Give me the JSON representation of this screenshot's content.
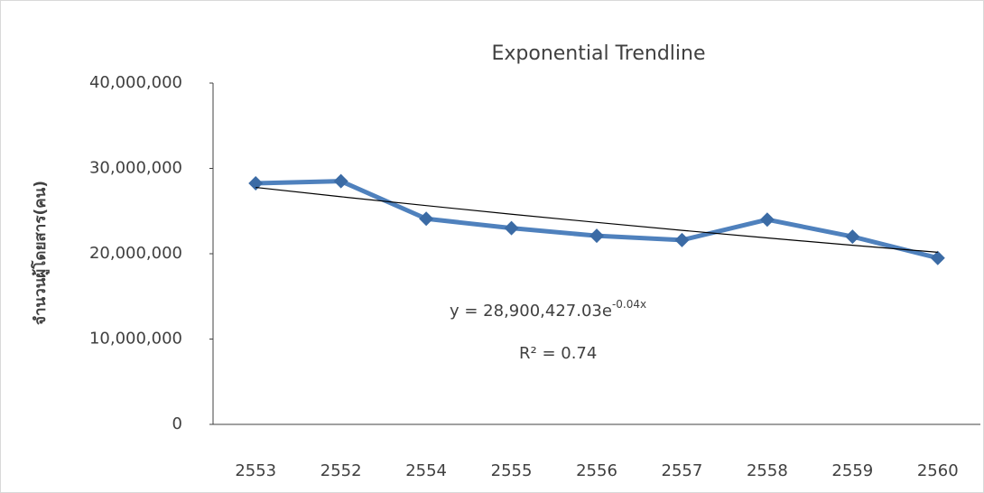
{
  "chart_data": {
    "type": "line",
    "title": "Exponential Trendline",
    "y_label": "จำนวนผู้โดยสาร(คน)",
    "categories": [
      "2553",
      "2552",
      "2554",
      "2555",
      "2556",
      "2557",
      "2558",
      "2559",
      "2560"
    ],
    "series": [
      {
        "color": "#4f81bd",
        "marker_color": "#3b6ba5",
        "values": [
          28250000,
          28500000,
          24100000,
          23000000,
          22100000,
          21600000,
          24000000,
          22000000,
          19500000
        ]
      }
    ],
    "trendline": {
      "color": "#000000",
      "values": [
        27770000,
        26680000,
        25640000,
        24630000,
        23670000,
        22740000,
        21850000,
        20990000,
        20170000
      ]
    },
    "annotations": {
      "equation": "y = 28,900,427.03e",
      "exponent": "-0.04x",
      "r_squared": "R² = 0.74"
    },
    "ylim": [
      0,
      40000000
    ],
    "yticks": [
      0,
      {
        "value": 10000000,
        "label": "10,000,000"
      },
      {
        "value": 20000000,
        "label": "20,000,000"
      },
      {
        "value": 30000000,
        "label": "30,000,000"
      },
      {
        "value": 40000000,
        "label": "40,000,000"
      }
    ],
    "grid": false
  }
}
